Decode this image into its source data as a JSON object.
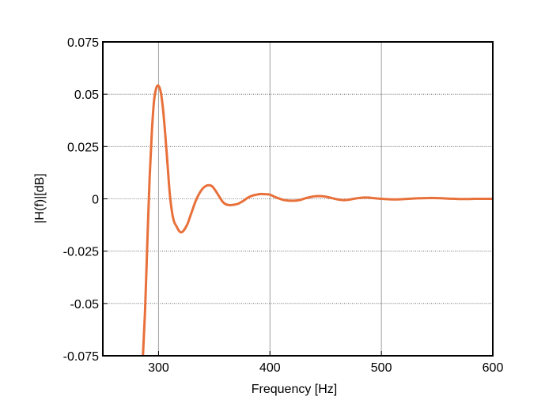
{
  "chart_data": {
    "type": "line",
    "title": "",
    "xlabel": "Frequency [Hz]",
    "ylabel": "|H(f)|[dB]",
    "xlim": [
      250,
      600
    ],
    "ylim": [
      -0.075,
      0.075
    ],
    "xticks": [
      300,
      400,
      500,
      600
    ],
    "xtick_labels": [
      "300",
      "400",
      "500",
      "600"
    ],
    "yticks": [
      0.075,
      0.05,
      0.025,
      0,
      -0.025,
      -0.05,
      -0.075
    ],
    "ytick_labels": [
      "0.075",
      "0.05",
      "0.025",
      "0",
      "-0.025",
      "-0.05",
      "-0.075"
    ],
    "grid": {
      "x": "solid-gray",
      "y": "dotted"
    },
    "line_color": "#e8703a",
    "series": [
      {
        "x": [
          286,
          288,
          290,
          292,
          294,
          296,
          298,
          300,
          302,
          304,
          306,
          308,
          310,
          312,
          314,
          316,
          318,
          320,
          322,
          324,
          326,
          328,
          330,
          333,
          336,
          339,
          342,
          345,
          348,
          351,
          354,
          357,
          360,
          364,
          368,
          372,
          376,
          380,
          384,
          388,
          392,
          396,
          400,
          404,
          408,
          412,
          416,
          420,
          424,
          428,
          432,
          436,
          440,
          444,
          448,
          452,
          456,
          460,
          464,
          468,
          472,
          476,
          480,
          484,
          488,
          492,
          496,
          500,
          506,
          512,
          518,
          524,
          530,
          536,
          542,
          548,
          554,
          560,
          566,
          572,
          578,
          584,
          590,
          596,
          600
        ],
        "y": [
          -0.075,
          -0.052,
          -0.02,
          0.01,
          0.032,
          0.047,
          0.053,
          0.054,
          0.051,
          0.043,
          0.031,
          0.017,
          0.003,
          -0.006,
          -0.011,
          -0.013,
          -0.015,
          -0.016,
          -0.0155,
          -0.014,
          -0.012,
          -0.009,
          -0.006,
          -0.0015,
          0.002,
          0.0045,
          0.006,
          0.0065,
          0.006,
          0.004,
          0.0015,
          -0.001,
          -0.0025,
          -0.003,
          -0.0028,
          -0.0022,
          -0.001,
          0.0005,
          0.0015,
          0.002,
          0.0023,
          0.0022,
          0.002,
          0.001,
          0.0002,
          -0.0005,
          -0.0008,
          -0.0009,
          -0.0008,
          -0.0004,
          0.0003,
          0.0008,
          0.0012,
          0.0013,
          0.0012,
          0.0008,
          0.0003,
          -0.0002,
          -0.0005,
          -0.0006,
          -0.0003,
          0.0001,
          0.0004,
          0.0006,
          0.0006,
          0.0004,
          0.0002,
          0.0,
          -0.0002,
          -0.0003,
          -0.0002,
          0.0,
          0.0002,
          0.0003,
          0.0004,
          0.0004,
          0.0003,
          0.0001,
          0.0,
          -0.0001,
          -0.0001,
          0.0,
          0.0,
          0.0,
          0.0
        ]
      }
    ]
  }
}
